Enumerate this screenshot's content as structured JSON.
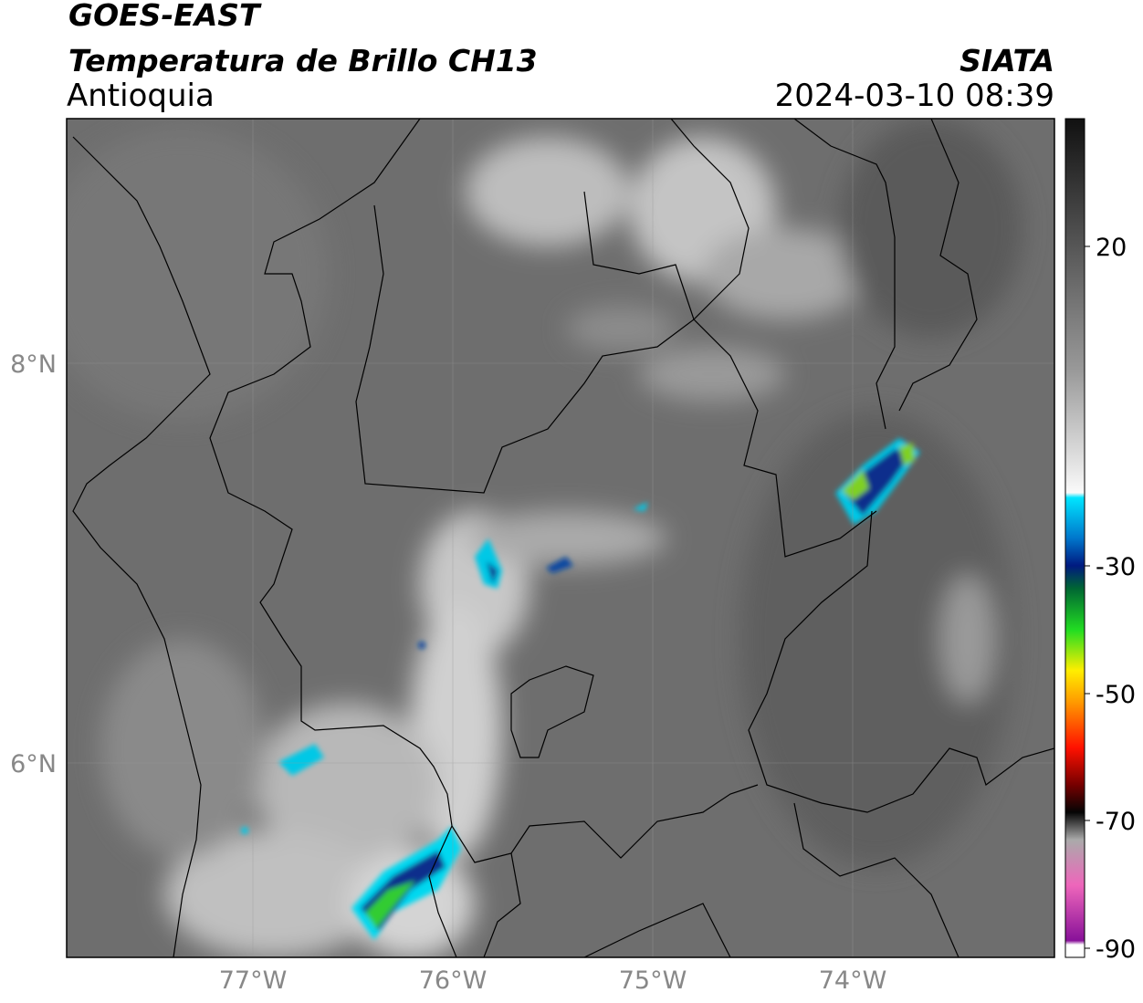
{
  "header": {
    "title": "GOES-EAST",
    "subtitle": "Temperatura de Brillo CH13",
    "region": "Antioquia",
    "source": "SIATA",
    "datetime": "2024-03-10 08:39"
  },
  "map": {
    "lon_labels": [
      "77°W",
      "76°W",
      "75°W",
      "74°W"
    ],
    "lat_labels": [
      "8°N",
      "6°N"
    ]
  },
  "colorbar": {
    "labels": [
      "20",
      "-30",
      "-50",
      "-70",
      "-90"
    ]
  }
}
